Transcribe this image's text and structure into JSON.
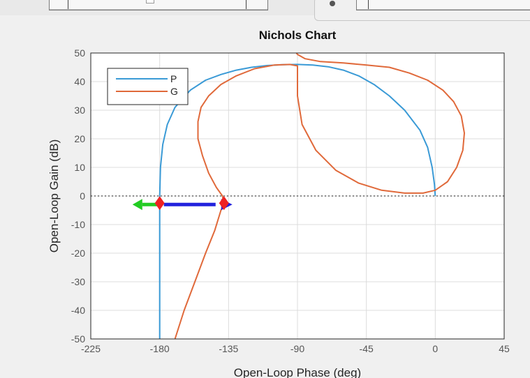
{
  "chart_data": {
    "type": "line",
    "title": "Nichols Chart",
    "xlabel": "Open-Loop Phase (deg)",
    "ylabel": "Open-Loop Gain (dB)",
    "xlim": [
      -225,
      45
    ],
    "ylim": [
      -50,
      50
    ],
    "xticks": [
      "-225",
      "-180",
      "-135",
      "-90",
      "-45",
      "0",
      "45"
    ],
    "yticks": [
      "50",
      "40",
      "30",
      "20",
      "10",
      "0",
      "-10",
      "-20",
      "-30",
      "-40",
      "-50"
    ],
    "grid": true,
    "legend": {
      "position": "top-left",
      "entries": [
        "P",
        "G"
      ]
    },
    "series": [
      {
        "name": "P",
        "color": "#3a9ad6",
        "x": [
          -180,
          -180,
          -180,
          -179.5,
          -178,
          -175,
          -170,
          -160,
          -150,
          -140,
          -130,
          -120,
          -110,
          -100,
          -90,
          -80,
          -70,
          -60,
          -50,
          -40,
          -30,
          -20,
          -10,
          -5,
          -2,
          -0.5,
          0
        ],
        "y": [
          -50,
          -20,
          0,
          10,
          18,
          25,
          31,
          37,
          40.5,
          42.5,
          44,
          45,
          45.6,
          45.9,
          46,
          45.8,
          45.2,
          44,
          42,
          39,
          35,
          30,
          23,
          17,
          10,
          4,
          0
        ]
      },
      {
        "name": "G",
        "color": "#e0693a",
        "x": [
          -170,
          -164,
          -157,
          -150,
          -144,
          -140,
          -138,
          -139,
          -143,
          -148,
          -152,
          -155,
          -155,
          -153,
          -148,
          -140,
          -130,
          -118,
          -105,
          -95,
          -90,
          -90,
          -87,
          -78,
          -65,
          -50,
          -35,
          -20,
          -8,
          0,
          8,
          14,
          18,
          19,
          17,
          12,
          5,
          -5,
          -17,
          -30,
          -45,
          -60,
          -75,
          -85,
          -90,
          -92
        ],
        "y": [
          -50,
          -40,
          -30,
          -20,
          -12,
          -5,
          -3,
          0,
          3,
          8,
          14,
          20,
          26,
          31,
          35,
          39,
          42,
          44.5,
          45.8,
          46,
          45.5,
          35,
          25,
          16,
          9,
          4.5,
          2,
          1,
          1,
          2,
          5,
          10,
          16,
          22,
          28,
          33,
          37,
          40.5,
          43,
          45,
          45.8,
          46.5,
          47,
          48,
          49.5,
          51
        ]
      }
    ],
    "annotations": [
      {
        "kind": "double-arrow",
        "x0": -180,
        "x1": -138,
        "y": -3,
        "color": "#2222dd"
      },
      {
        "kind": "arrow",
        "x0": -180,
        "x1": -195,
        "y": -3,
        "color": "#22cc22"
      },
      {
        "kind": "marker",
        "x": -180,
        "y": -3,
        "color": "#ee2222"
      },
      {
        "kind": "marker",
        "x": -138,
        "y": -3,
        "color": "#ee2222"
      },
      {
        "kind": "zero-line",
        "y": 0
      }
    ]
  }
}
